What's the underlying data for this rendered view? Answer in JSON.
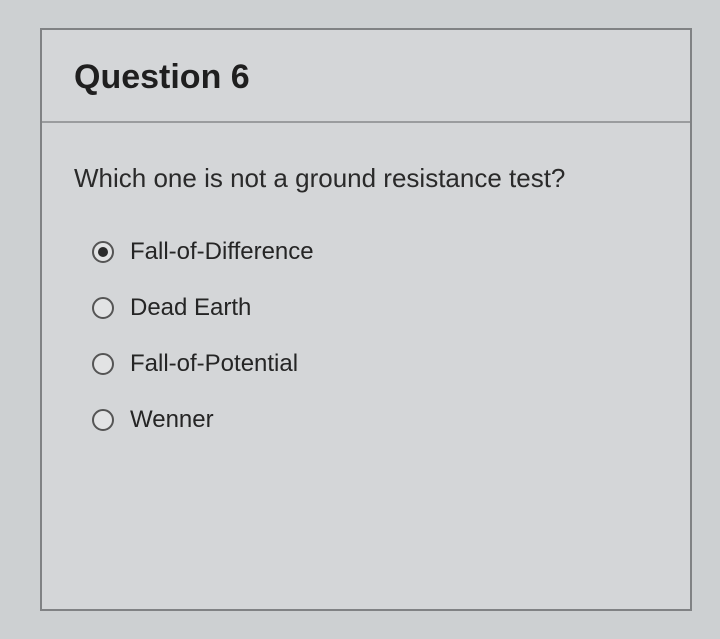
{
  "card": {
    "title": "Question 6",
    "question": "Which one is not a ground resistance test?",
    "options": [
      {
        "label": "Fall-of-Difference",
        "selected": true
      },
      {
        "label": "Dead Earth",
        "selected": false
      },
      {
        "label": "Fall-of-Potential",
        "selected": false
      },
      {
        "label": "Wenner",
        "selected": false
      }
    ]
  },
  "colors": {
    "page_bg": "#cdd0d2",
    "card_bg": "#d4d6d8",
    "border": "#808284",
    "divider": "#9a9c9e",
    "text": "#2a2a2a",
    "radio_border": "#555",
    "radio_bg": "#e2e3e4",
    "radio_dot": "#2b2b2b"
  },
  "typography": {
    "title_fontsize": 34,
    "title_weight": 600,
    "question_fontsize": 26,
    "option_fontsize": 24,
    "font_family": "sans-serif"
  }
}
